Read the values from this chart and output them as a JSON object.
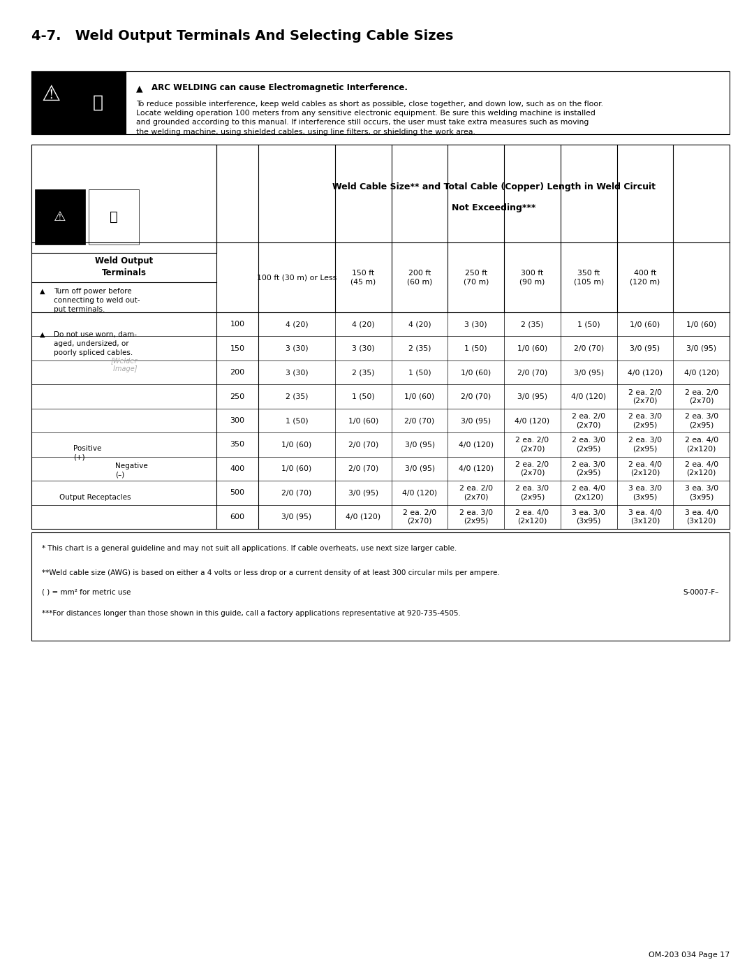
{
  "title": "4-7.   Weld Output Terminals And Selecting Cable Sizes",
  "warning_bold": "ARC WELDING can cause Electromagnetic Interference.",
  "warning_text": "To reduce possible interference, keep weld cables as short as possible, close together, and down low, such as on the floor.\nLocate welding operation 100 meters from any sensitive electronic equipment. Be sure this welding machine is installed\nand grounded according to this manual. If interference still occurs, the user must take extra measures such as moving\nthe welding machine, using shielded cables, using line filters, or shielding the work area.",
  "table_header1": "Weld Cable Size** and Total Cable (Copper) Length in Weld Circuit",
  "table_header2": "Not Exceeding***",
  "left_label1": "Weld Output",
  "left_label2": "Terminals",
  "warn1_bold": "Turn off power before\nconnecting to weld out-\nput terminals.",
  "warn2_bold": "Do not use worn, dam-\naged, undersized, or\npoorly spliced cables.",
  "positive_label": "Positive\n(+)",
  "negative_label": "Negative\n(–)",
  "receptacles_label": "Output Receptacles",
  "col_headers": [
    "100 ft (30 m) or Less",
    "150 ft\n(45 m)",
    "200 ft\n(60 m)",
    "250 ft\n(70 m)",
    "300 ft\n(90 m)",
    "350 ft\n(105 m)",
    "400 ft\n(120 m)"
  ],
  "row_labels": [
    "100",
    "150",
    "200",
    "250",
    "300",
    "350",
    "400",
    "500",
    "600"
  ],
  "table_data": [
    [
      "4 (20)",
      "4 (20)",
      "4 (20)",
      "3 (30)",
      "2 (35)",
      "1 (50)",
      "1/0 (60)",
      "1/0 (60)"
    ],
    [
      "3 (30)",
      "3 (30)",
      "2 (35)",
      "1 (50)",
      "1/0 (60)",
      "2/0 (70)",
      "3/0 (95)",
      "3/0 (95)"
    ],
    [
      "3 (30)",
      "2 (35)",
      "1 (50)",
      "1/0 (60)",
      "2/0 (70)",
      "3/0 (95)",
      "4/0 (120)",
      "4/0 (120)"
    ],
    [
      "2 (35)",
      "1 (50)",
      "1/0 (60)",
      "2/0 (70)",
      "3/0 (95)",
      "4/0 (120)",
      "2 ea. 2/0\n(2x70)",
      "2 ea. 2/0\n(2x70)"
    ],
    [
      "1 (50)",
      "1/0 (60)",
      "2/0 (70)",
      "3/0 (95)",
      "4/0 (120)",
      "2 ea. 2/0\n(2x70)",
      "2 ea. 3/0\n(2x95)",
      "2 ea. 3/0\n(2x95)"
    ],
    [
      "1/0 (60)",
      "2/0 (70)",
      "3/0 (95)",
      "4/0 (120)",
      "2 ea. 2/0\n(2x70)",
      "2 ea. 3/0\n(2x95)",
      "2 ea. 3/0\n(2x95)",
      "2 ea. 4/0\n(2x120)"
    ],
    [
      "1/0 (60)",
      "2/0 (70)",
      "3/0 (95)",
      "4/0 (120)",
      "2 ea. 2/0\n(2x70)",
      "2 ea. 3/0\n(2x95)",
      "2 ea. 4/0\n(2x120)",
      "2 ea. 4/0\n(2x120)"
    ],
    [
      "2/0 (70)",
      "3/0 (95)",
      "4/0 (120)",
      "2 ea. 2/0\n(2x70)",
      "2 ea. 3/0\n(2x95)",
      "2 ea. 4/0\n(2x120)",
      "3 ea. 3/0\n(3x95)",
      "3 ea. 3/0\n(3x95)"
    ],
    [
      "3/0 (95)",
      "4/0 (120)",
      "2 ea. 2/0\n(2x70)",
      "2 ea. 3/0\n(2x95)",
      "2 ea. 4/0\n(2x120)",
      "3 ea. 3/0\n(3x95)",
      "3 ea. 4/0\n(3x120)",
      "3 ea. 4/0\n(3x120)"
    ]
  ],
  "footnote1": "* This chart is a general guideline and may not suit all applications. If cable overheats, use next size larger cable.",
  "footnote2": "**Weld cable size (AWG) is based on either a 4 volts or less drop or a current density of at least 300 circular mils per ampere.",
  "footnote3": "( ) = mm² for metric use",
  "footnote_code": "S-0007-F–",
  "footnote4": "***For distances longer than those shown in this guide, call a factory applications representative at 920-735-4505.",
  "page_footer": "OM-203 034 Page 17",
  "bg_color": "#ffffff"
}
